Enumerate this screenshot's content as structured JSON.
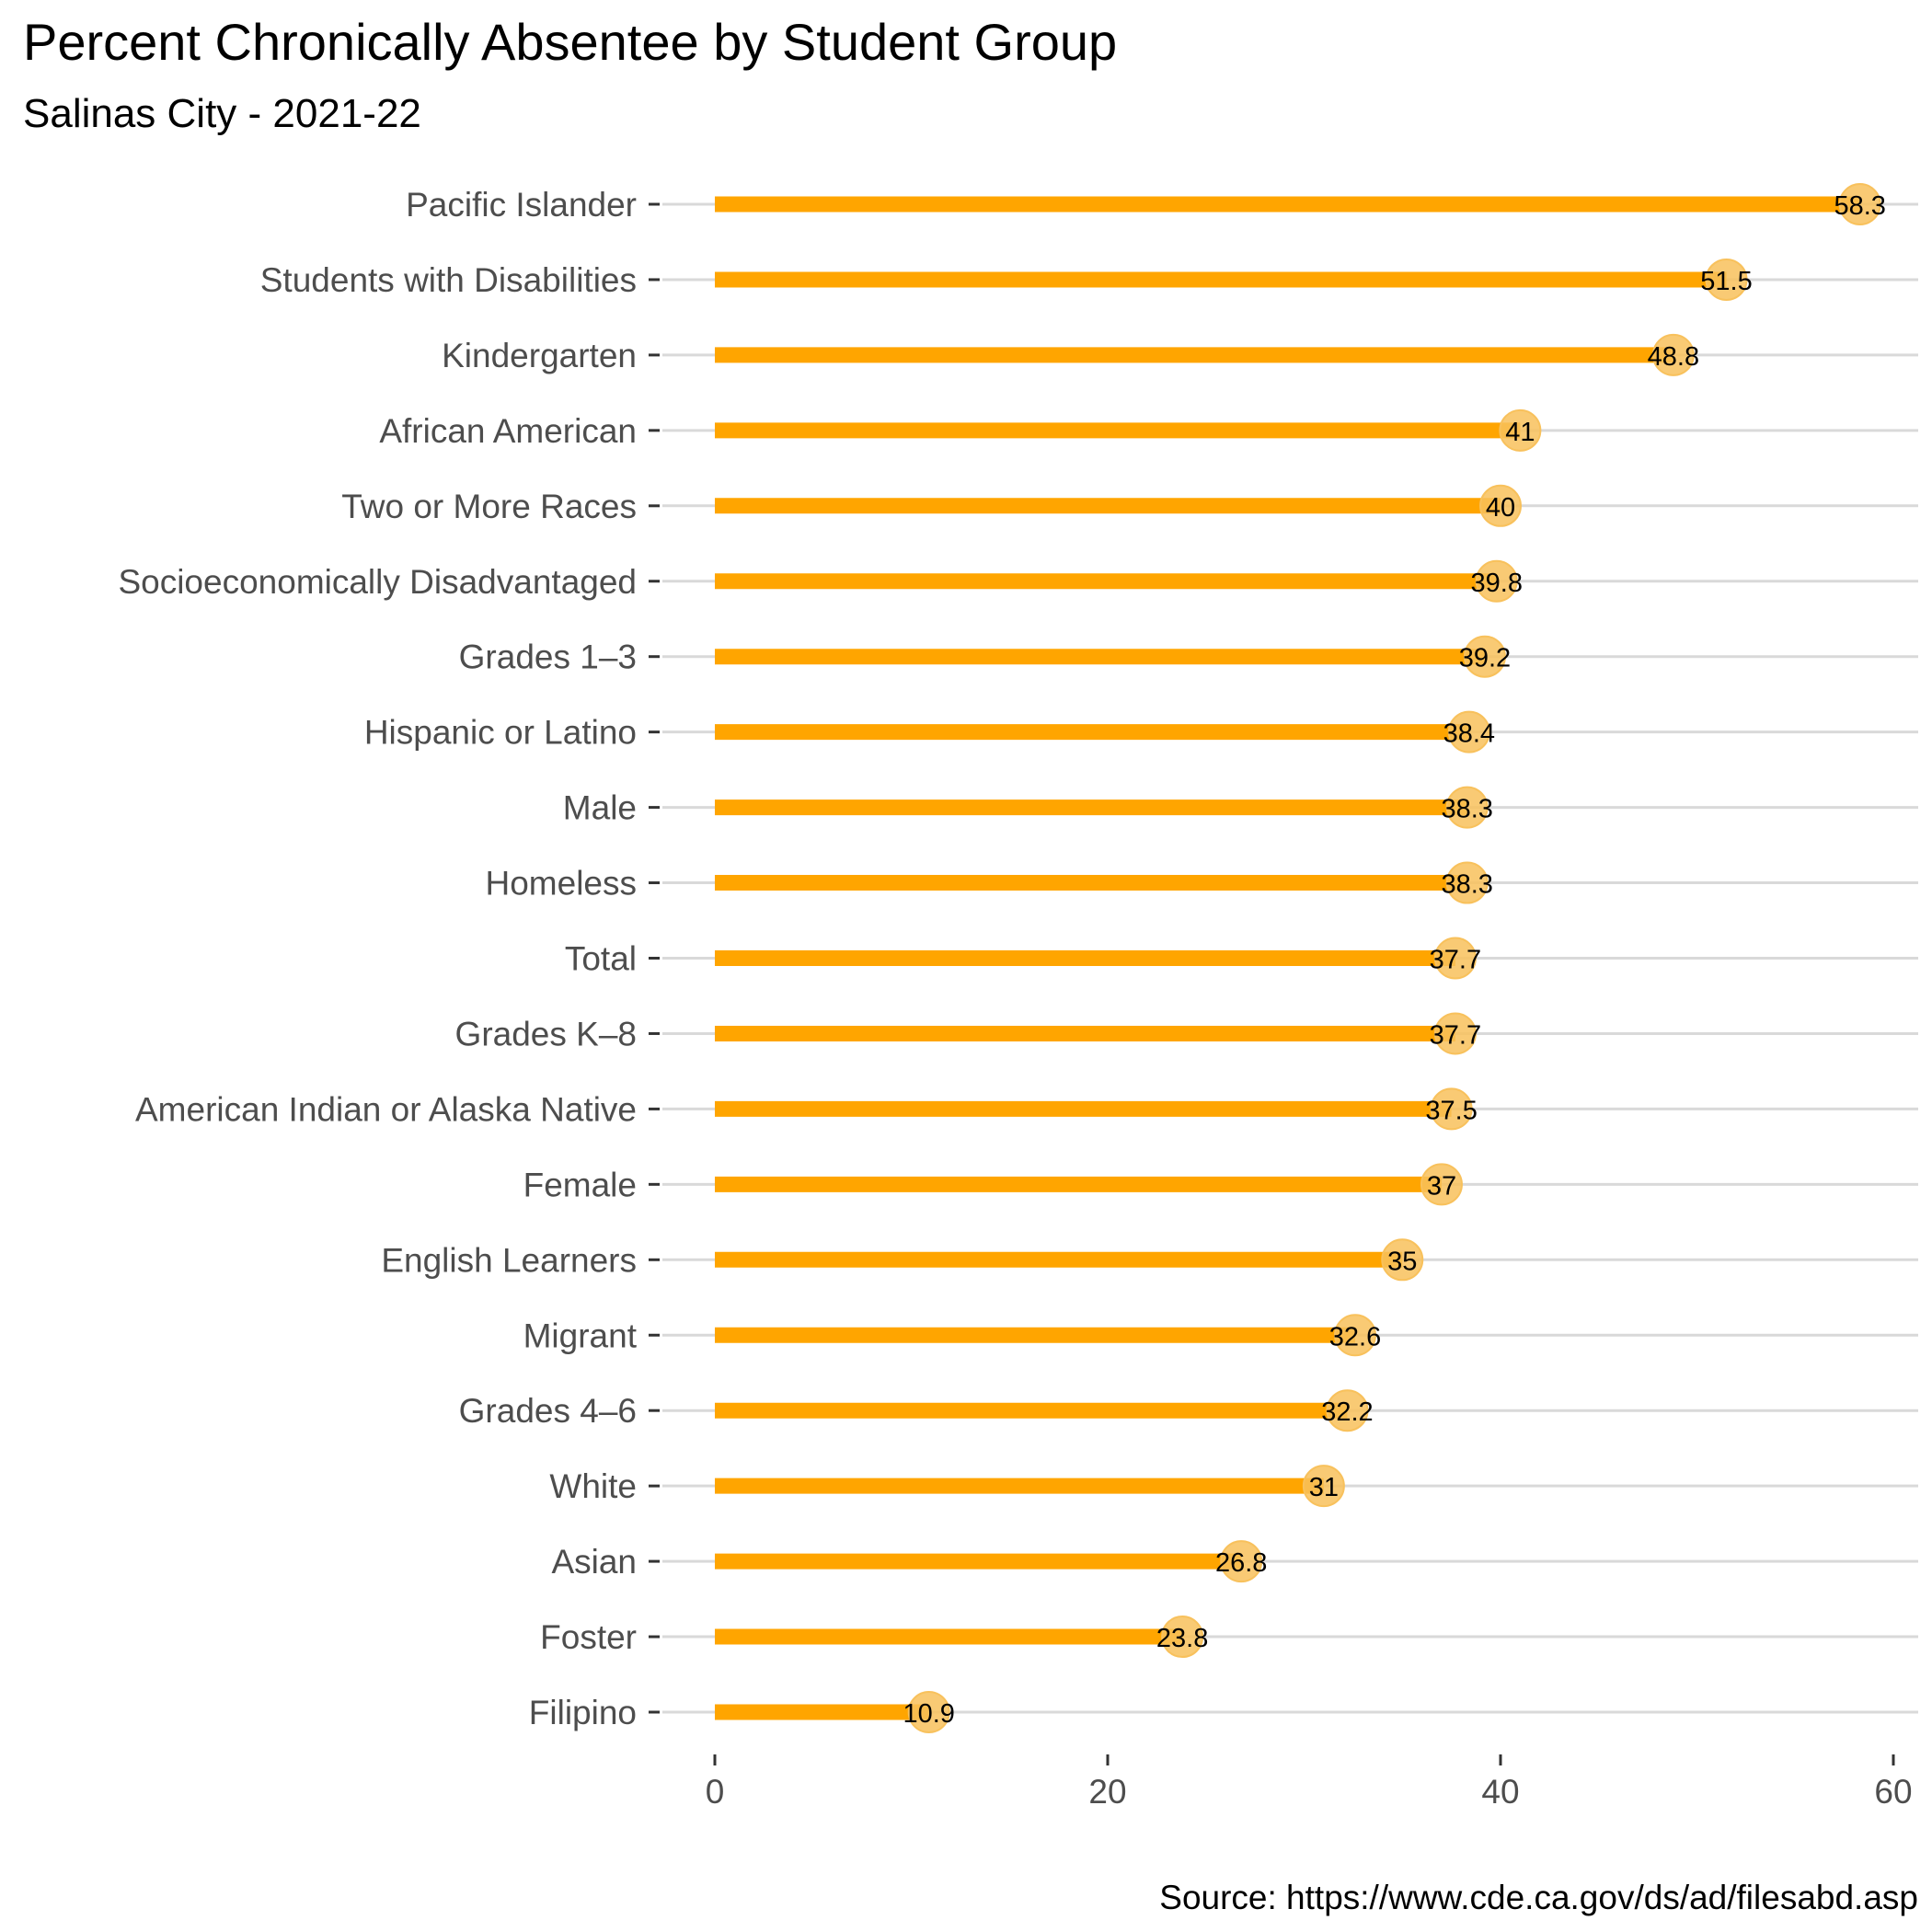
{
  "chart_data": {
    "type": "bar",
    "title": "Percent Chronically Absentee by Student Group",
    "subtitle": "Salinas City - 2021-22",
    "caption": "Source: https://www.cde.ca.gov/ds/ad/filesabd.asp",
    "xlabel": "",
    "ylabel": "",
    "orientation": "horizontal",
    "xlim": [
      0,
      60
    ],
    "x_ticks": [
      0,
      20,
      40,
      60
    ],
    "grid": "horizontal major lines",
    "legend": "none",
    "colors": {
      "bar": "#FFA500",
      "point": "#F8C15C",
      "grid": "#D9D9D9"
    },
    "categories": [
      "Pacific Islander",
      "Students with Disabilities",
      "Kindergarten",
      "African American",
      "Two or More Races",
      "Socioeconomically Disadvantaged",
      "Grades 1–3",
      "Hispanic or Latino",
      "Male",
      "Homeless",
      "Total",
      "Grades K–8",
      "American Indian or Alaska Native",
      "Female",
      "English Learners",
      "Migrant",
      "Grades 4–6",
      "White",
      "Asian",
      "Foster",
      "Filipino"
    ],
    "values": [
      58.3,
      51.5,
      48.8,
      41,
      40,
      39.8,
      39.2,
      38.4,
      38.3,
      38.3,
      37.7,
      37.7,
      37.5,
      37,
      35,
      32.6,
      32.2,
      31,
      26.8,
      23.8,
      10.9
    ],
    "value_labels": [
      "58.3",
      "51.5",
      "48.8",
      "41",
      "40",
      "39.8",
      "39.2",
      "38.4",
      "38.3",
      "38.3",
      "37.7",
      "37.7",
      "37.5",
      "37",
      "35",
      "32.6",
      "32.2",
      "31",
      "26.8",
      "23.8",
      "10.9"
    ]
  }
}
